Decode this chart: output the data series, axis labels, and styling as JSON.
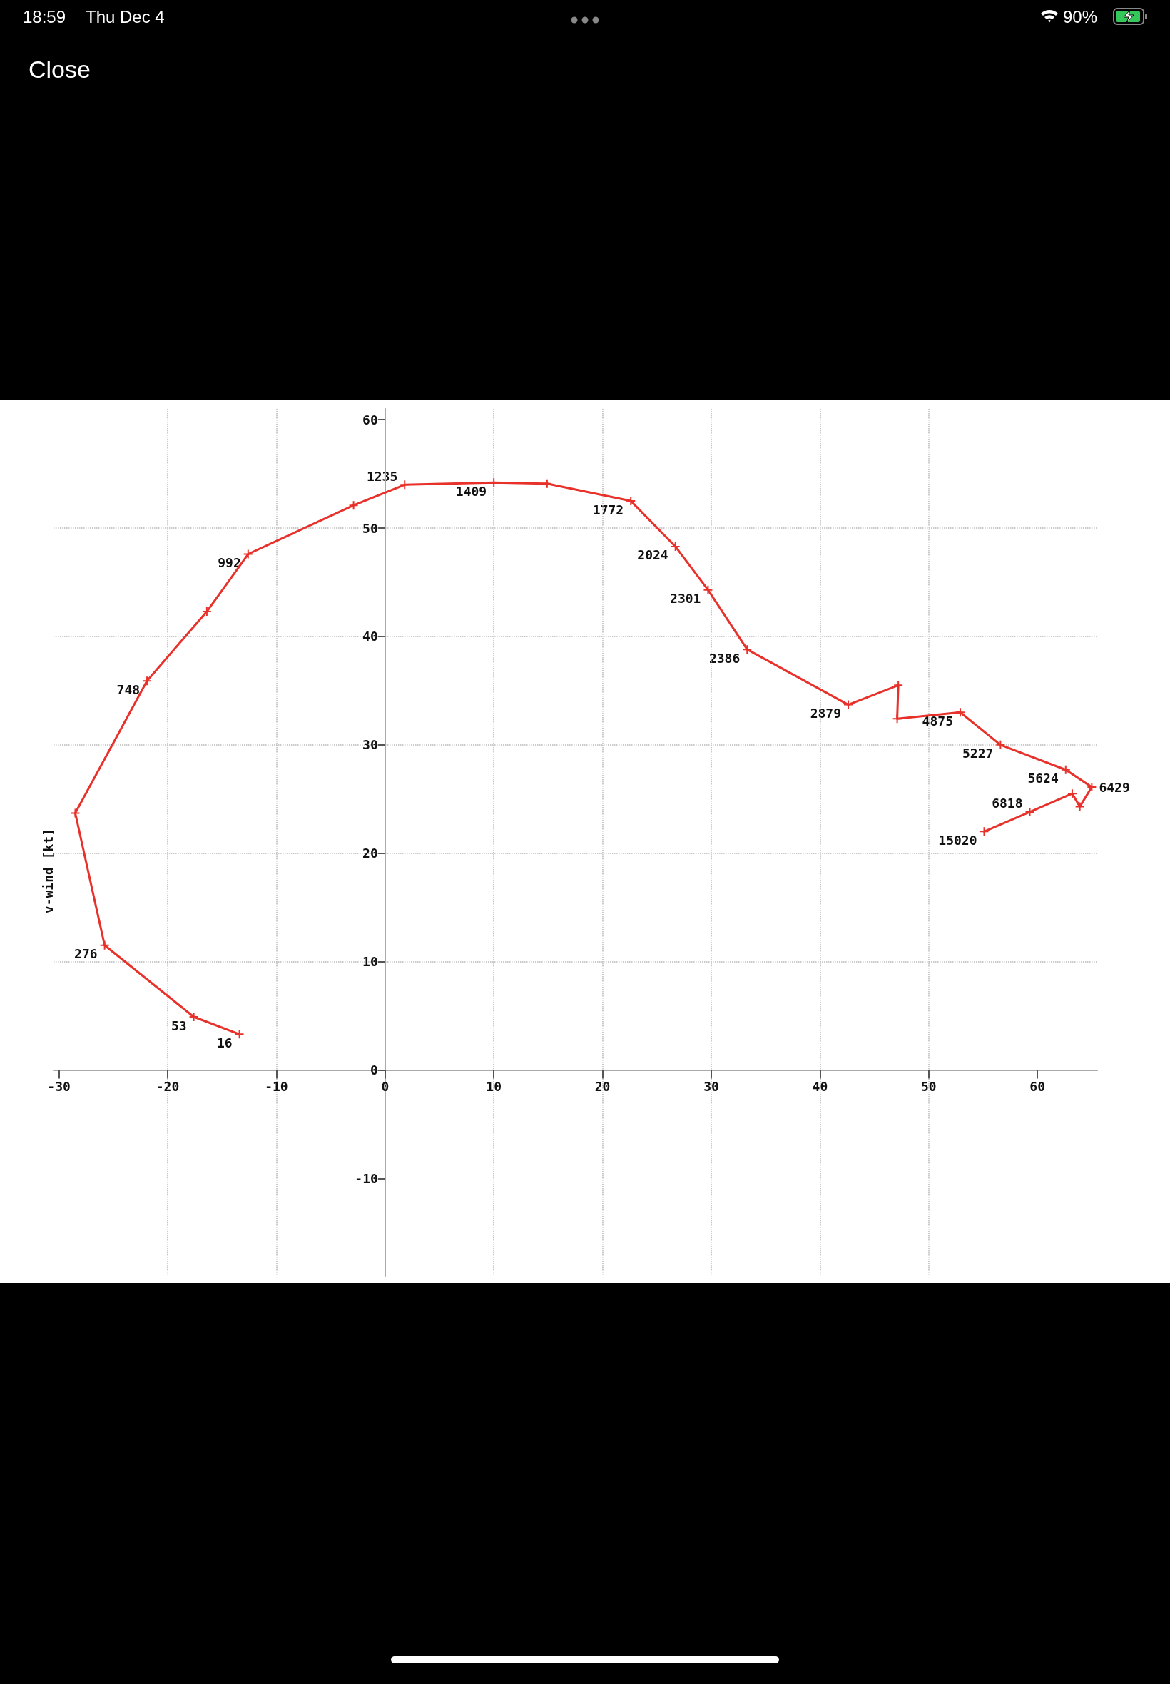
{
  "chart_data": {
    "type": "line",
    "ylabel": "v-wind [kt]",
    "x": [
      -13.4,
      -17.6,
      -25.8,
      -28.5,
      -21.9,
      -16.4,
      -12.6,
      -2.9,
      1.8,
      10,
      14.9,
      22.6,
      26.7,
      29.7,
      33.3,
      42.6,
      47.2,
      47.1,
      52.9,
      56.6,
      62.6,
      65.0,
      63.9,
      63.2,
      59.3,
      55.1
    ],
    "values": [
      3.3,
      4.9,
      11.5,
      23.7,
      35.9,
      42.3,
      47.6,
      52.1,
      54.0,
      54.2,
      54.1,
      52.5,
      48.3,
      44.3,
      38.8,
      33.7,
      35.5,
      32.4,
      33.0,
      30.0,
      27.7,
      26.1,
      24.3,
      25.5,
      23.8,
      22.0
    ],
    "color": "#e8312a",
    "marker": "cross",
    "line_style": "solid",
    "grid": true,
    "xlim": [
      -30.5,
      65.5
    ],
    "xticks": [
      -30,
      -20,
      -10,
      0,
      10,
      20,
      30,
      40,
      50,
      60
    ],
    "ylim": [
      -19,
      61
    ],
    "yticks": [
      -10,
      0,
      10,
      20,
      30,
      40,
      50,
      60
    ],
    "annotations": [
      "18:59",
      "Thu Dec 4",
      "90%",
      "Close",
      {
        "text": "16",
        "x": -13.4,
        "y": 3.3
      },
      {
        "text": "53",
        "x": -17.6,
        "y": 4.9
      },
      {
        "text": "276",
        "x": -25.8,
        "y": 11.5
      },
      {
        "text": "748",
        "x": -21.9,
        "y": 35.9
      },
      {
        "text": "992",
        "x": -12.6,
        "y": 47.6
      },
      {
        "text": "1235",
        "x": 1.8,
        "y": 54.0
      },
      {
        "text": "1409",
        "x": 10,
        "y": 54.2
      },
      {
        "text": "1772",
        "x": 22.6,
        "y": 52.5
      },
      {
        "text": "2024",
        "x": 26.7,
        "y": 48.3
      },
      {
        "text": "2301",
        "x": 29.7,
        "y": 44.3
      },
      {
        "text": "2386",
        "x": 33.3,
        "y": 38.8
      },
      {
        "text": "2879",
        "x": 42.6,
        "y": 33.7
      },
      {
        "text": "4875",
        "x": 52.9,
        "y": 33.0
      },
      {
        "text": "5227",
        "x": 56.6,
        "y": 30.0
      },
      {
        "text": "5624",
        "x": 62.6,
        "y": 27.7
      },
      {
        "text": "6429",
        "x": 65.0,
        "y": 26.1
      },
      {
        "text": "6818",
        "x": 59.3,
        "y": 23.8
      },
      {
        "text": "15020",
        "x": 55.1,
        "y": 22.0
      }
    ]
  }
}
